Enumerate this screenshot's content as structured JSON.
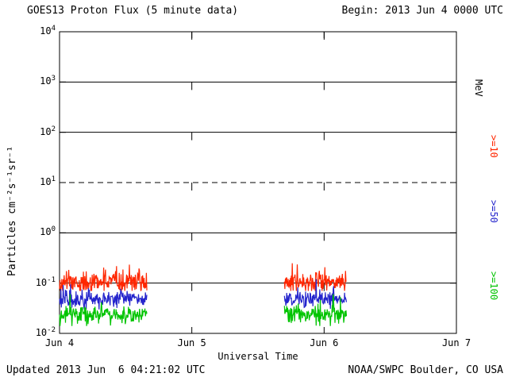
{
  "header": {
    "title": "GOES13 Proton Flux (5 minute data)",
    "begin": "Begin: 2013 Jun 4 0000 UTC"
  },
  "footer": {
    "updated": "Updated 2013 Jun  6 04:21:02 UTC",
    "credit": "NOAA/SWPC Boulder, CO USA"
  },
  "axes": {
    "y_label": "Particles cm⁻²s⁻¹sr⁻¹",
    "y_exponents": [
      4,
      3,
      2,
      1,
      0,
      -1,
      -2
    ],
    "x_label": "Universal Time",
    "x_ticks": [
      "Jun 4",
      "Jun 5",
      "Jun 6",
      "Jun 7"
    ],
    "unit_label": "MeV"
  },
  "legend": [
    {
      "label": ">=10",
      "color": "#ff2600"
    },
    {
      "label": ">=50",
      "color": "#2424cc"
    },
    {
      "label": ">=100",
      "color": "#00c400"
    }
  ],
  "chart_data": {
    "type": "line",
    "title": "GOES13 Proton Flux (5 minute data)",
    "x_axis": {
      "label": "Universal Time",
      "start": "2013 Jun 4 0000 UTC",
      "end": "2013 Jun 7 0000 UTC",
      "tick_labels": [
        "Jun 4",
        "Jun 5",
        "Jun 6",
        "Jun 7"
      ],
      "span_days": 3
    },
    "y_axis": {
      "label": "Particles cm⁻²s⁻¹sr⁻¹",
      "scale": "log",
      "range_exponents": [
        -2,
        4
      ]
    },
    "gridlines": {
      "solid_at": [
        1000,
        100,
        1,
        0.1
      ],
      "dashed_at": [
        10
      ],
      "vertical_dotted_at_days": [
        1,
        2
      ]
    },
    "cadence_minutes": 5,
    "data_gap_days": [
      [
        0.66,
        1.7
      ]
    ],
    "segments_days": [
      [
        0.0,
        0.66
      ],
      [
        1.7,
        2.17
      ]
    ],
    "series": [
      {
        "name": ">=10 MeV",
        "color": "#ff2600",
        "typical_flux": 0.1,
        "range": [
          0.07,
          0.32
        ],
        "noise_log_sigma": 0.1,
        "spike_prob": 0.08,
        "spike_mult": 1.6,
        "seed": 11
      },
      {
        "name": ">=50 MeV",
        "color": "#2424cc",
        "typical_flux": 0.048,
        "range": [
          0.03,
          0.12
        ],
        "noise_log_sigma": 0.09,
        "spike_prob": 0.04,
        "spike_mult": 1.0,
        "seed": 22
      },
      {
        "name": ">=100 MeV",
        "color": "#00c400",
        "typical_flux": 0.024,
        "range": [
          0.014,
          0.06
        ],
        "noise_log_sigma": 0.1,
        "spike_prob": 0.04,
        "spike_mult": 1.0,
        "seed": 33
      }
    ]
  }
}
